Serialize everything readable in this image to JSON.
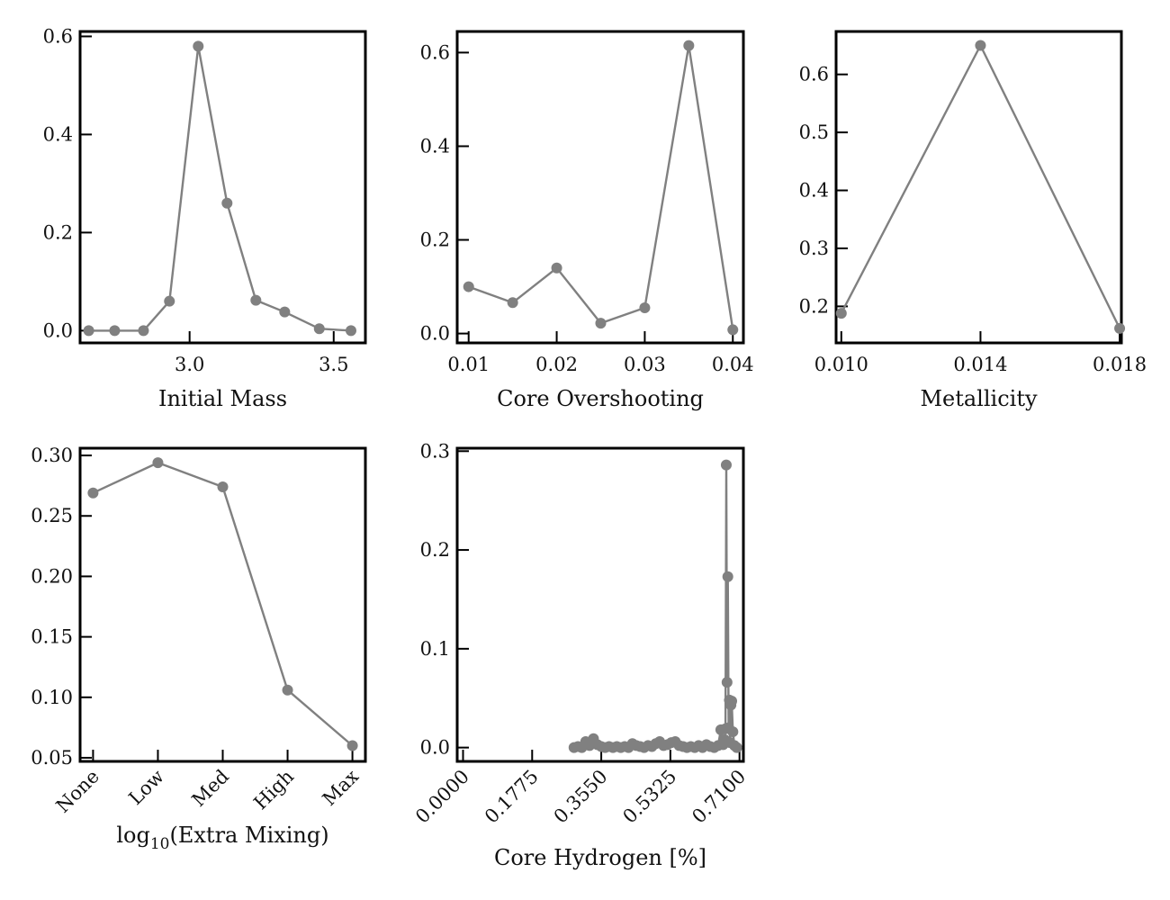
{
  "colors": {
    "series": "#808080",
    "axes": "#000000"
  },
  "chart_data": [
    {
      "type": "line",
      "xlabel": "Initial Mass",
      "ylabel": "",
      "xlim": [
        2.62,
        3.61
      ],
      "ylim": [
        -0.025,
        0.61
      ],
      "xticks": [
        3.0,
        3.5
      ],
      "xtick_labels": [
        "3.0",
        "3.5"
      ],
      "yticks": [
        0.0,
        0.2,
        0.4,
        0.6
      ],
      "ytick_labels": [
        "0.0",
        "0.2",
        "0.4",
        "0.6"
      ],
      "x": [
        2.65,
        2.74,
        2.84,
        2.93,
        3.03,
        3.13,
        3.23,
        3.33,
        3.45,
        3.56
      ],
      "y": [
        0.0,
        0.0,
        0.0,
        0.06,
        0.58,
        0.26,
        0.062,
        0.038,
        0.004,
        0.0
      ]
    },
    {
      "type": "line",
      "xlabel": "Core Overshooting",
      "ylabel": "",
      "xlim": [
        0.0087,
        0.0412
      ],
      "ylim": [
        -0.02,
        0.645
      ],
      "xticks": [
        0.01,
        0.02,
        0.03,
        0.04
      ],
      "xtick_labels": [
        "0.01",
        "0.02",
        "0.03",
        "0.04"
      ],
      "yticks": [
        0.0,
        0.2,
        0.4,
        0.6
      ],
      "ytick_labels": [
        "0.0",
        "0.2",
        "0.4",
        "0.6"
      ],
      "x": [
        0.01,
        0.015,
        0.02,
        0.025,
        0.03,
        0.035,
        0.04
      ],
      "y": [
        0.1,
        0.066,
        0.14,
        0.022,
        0.055,
        0.615,
        0.008
      ]
    },
    {
      "type": "line",
      "xlabel": "Metallicity",
      "ylabel": "",
      "xlim": [
        0.00985,
        0.01805
      ],
      "ylim": [
        0.137,
        0.674
      ],
      "xticks": [
        0.01,
        0.014,
        0.018
      ],
      "xtick_labels": [
        "0.010",
        "0.014",
        "0.018"
      ],
      "yticks": [
        0.2,
        0.3,
        0.4,
        0.5,
        0.6
      ],
      "ytick_labels": [
        "0.2",
        "0.3",
        "0.4",
        "0.5",
        "0.6"
      ],
      "x": [
        0.01,
        0.014,
        0.018
      ],
      "y": [
        0.188,
        0.65,
        0.162
      ]
    },
    {
      "type": "line",
      "xlabel": "log10(Extra Mixing)",
      "ylabel": "",
      "categories": [
        "None",
        "Low",
        "Med",
        "High",
        "Max"
      ],
      "xlim": [
        -0.2,
        4.2
      ],
      "ylim": [
        0.047,
        0.306
      ],
      "yticks": [
        0.05,
        0.1,
        0.15,
        0.2,
        0.25,
        0.3
      ],
      "ytick_labels": [
        "0.05",
        "0.10",
        "0.15",
        "0.20",
        "0.25",
        "0.30"
      ],
      "x": [
        0,
        1,
        2,
        3,
        4
      ],
      "y": [
        0.269,
        0.294,
        0.274,
        0.106,
        0.06
      ]
    },
    {
      "type": "line",
      "xlabel": "Core Hydrogen [%]",
      "ylabel": "",
      "xlim": [
        -0.015,
        0.72
      ],
      "ylim": [
        -0.014,
        0.303
      ],
      "xticks": [
        0.0,
        0.1775,
        0.355,
        0.5325,
        0.71
      ],
      "xtick_labels": [
        "0.0000",
        "0.1775",
        "0.3550",
        "0.5325",
        "0.7100"
      ],
      "yticks": [
        0.0,
        0.1,
        0.2,
        0.3
      ],
      "ytick_labels": [
        "0.0",
        "0.1",
        "0.2",
        "0.3"
      ],
      "x": [
        0.285,
        0.295,
        0.305,
        0.315,
        0.325,
        0.335,
        0.345,
        0.355,
        0.365,
        0.375,
        0.385,
        0.395,
        0.405,
        0.415,
        0.425,
        0.435,
        0.445,
        0.455,
        0.465,
        0.475,
        0.485,
        0.495,
        0.505,
        0.515,
        0.525,
        0.535,
        0.545,
        0.555,
        0.565,
        0.575,
        0.585,
        0.595,
        0.605,
        0.615,
        0.625,
        0.635,
        0.645,
        0.655,
        0.662,
        0.668,
        0.672,
        0.674,
        0.676,
        0.678,
        0.68,
        0.682,
        0.684,
        0.686,
        0.688,
        0.69,
        0.693,
        0.697,
        0.703
      ],
      "y": [
        0.0,
        0.001,
        0.0,
        0.006,
        0.002,
        0.009,
        0.003,
        0.001,
        0.0,
        0.001,
        0.0,
        0.001,
        0.0,
        0.001,
        0.0,
        0.004,
        0.002,
        0.001,
        0.0,
        0.002,
        0.001,
        0.004,
        0.006,
        0.002,
        0.003,
        0.005,
        0.006,
        0.002,
        0.001,
        0.0,
        0.001,
        0.0,
        0.002,
        0.0,
        0.003,
        0.001,
        0.0,
        0.002,
        0.018,
        0.003,
        0.008,
        0.019,
        0.286,
        0.066,
        0.173,
        0.02,
        0.048,
        0.005,
        0.043,
        0.047,
        0.016,
        0.002,
        0.0
      ]
    }
  ]
}
